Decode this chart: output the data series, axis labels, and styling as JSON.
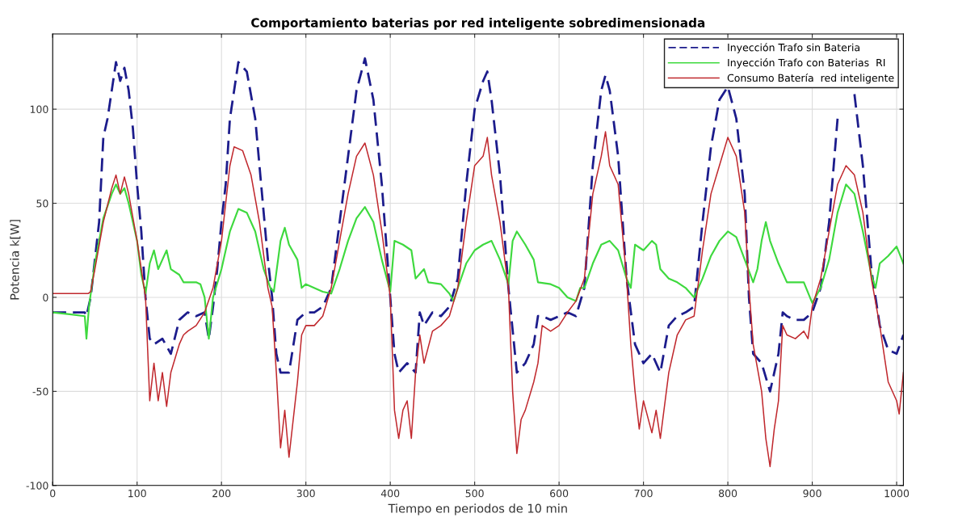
{
  "chart_data": {
    "type": "line",
    "title": "Comportamiento baterias por red inteligente sobredimensionada",
    "xlabel": "Tiempo en periodos de 10 min",
    "ylabel": "Potencia k[W]",
    "xlim": [
      0,
      1008
    ],
    "xticks": [
      0,
      100,
      200,
      300,
      400,
      500,
      600,
      700,
      800,
      900,
      1000
    ],
    "ylim": [
      -100,
      140
    ],
    "yticks": [
      -100,
      -50,
      0,
      50,
      100
    ],
    "grid": true,
    "legend": "top right",
    "series": [
      {
        "name": "Inyección Trafo sin Bateria",
        "color": "#1c1c8c",
        "line_style": "dashed",
        "x": [
          0,
          20,
          38,
          40,
          45,
          50,
          55,
          60,
          65,
          70,
          75,
          80,
          85,
          90,
          95,
          100,
          105,
          110,
          115,
          120,
          130,
          140,
          150,
          160,
          170,
          180,
          185,
          190,
          195,
          200,
          205,
          210,
          220,
          230,
          240,
          250,
          255,
          260,
          265,
          270,
          280,
          290,
          300,
          310,
          320,
          330,
          340,
          350,
          360,
          370,
          380,
          390,
          400,
          405,
          410,
          420,
          430,
          435,
          440,
          450,
          460,
          470,
          480,
          490,
          500,
          510,
          515,
          520,
          530,
          540,
          550,
          560,
          570,
          575,
          580,
          590,
          600,
          610,
          620,
          630,
          640,
          650,
          655,
          660,
          670,
          680,
          690,
          700,
          710,
          720,
          730,
          740,
          750,
          760,
          770,
          780,
          790,
          800,
          810,
          820,
          825,
          830,
          840,
          850,
          860,
          865,
          870,
          880,
          890,
          900,
          910,
          920,
          930,
          940,
          950,
          960,
          970,
          980,
          990,
          1000,
          1008
        ],
        "values": [
          -8,
          -8,
          -8,
          -10,
          0,
          20,
          40,
          85,
          95,
          110,
          125,
          115,
          122,
          110,
          90,
          60,
          35,
          0,
          -22,
          -25,
          -22,
          -30,
          -12,
          -8,
          -10,
          -8,
          -22,
          -5,
          15,
          40,
          60,
          95,
          125,
          120,
          95,
          45,
          20,
          0,
          -30,
          -40,
          -40,
          -12,
          -8,
          -8,
          -5,
          5,
          40,
          75,
          110,
          127,
          105,
          60,
          0,
          -30,
          -40,
          -35,
          -40,
          -8,
          -15,
          -8,
          -10,
          -5,
          10,
          60,
          100,
          115,
          120,
          105,
          65,
          5,
          -40,
          -35,
          -25,
          -10,
          -10,
          -12,
          -10,
          -8,
          -10,
          5,
          70,
          110,
          118,
          110,
          75,
          10,
          -25,
          -35,
          -30,
          -40,
          -15,
          -10,
          -8,
          -5,
          40,
          80,
          105,
          112,
          95,
          55,
          0,
          -30,
          -35,
          -50,
          -30,
          -8,
          -10,
          -12,
          -12,
          -8,
          5,
          40,
          95,
          null,
          108,
          70,
          15,
          -15,
          -28,
          -30,
          -20
        ]
      },
      {
        "name": "Inyección Trafo con Baterias  RI",
        "color": "#3ed93e",
        "line_style": "solid",
        "x": [
          0,
          20,
          38,
          40,
          43,
          50,
          60,
          70,
          75,
          80,
          85,
          90,
          100,
          105,
          110,
          115,
          120,
          125,
          130,
          135,
          140,
          150,
          155,
          160,
          170,
          175,
          180,
          185,
          190,
          200,
          210,
          220,
          230,
          240,
          250,
          258,
          262,
          270,
          275,
          280,
          290,
          295,
          300,
          320,
          330,
          340,
          350,
          360,
          370,
          380,
          390,
          400,
          405,
          415,
          425,
          430,
          440,
          445,
          460,
          470,
          475,
          480,
          490,
          500,
          510,
          520,
          530,
          540,
          545,
          550,
          560,
          570,
          575,
          590,
          600,
          610,
          620,
          625,
          630,
          640,
          650,
          660,
          670,
          680,
          685,
          690,
          700,
          710,
          715,
          720,
          730,
          740,
          750,
          760,
          770,
          780,
          790,
          800,
          810,
          820,
          830,
          835,
          840,
          845,
          850,
          860,
          870,
          880,
          890,
          900,
          910,
          920,
          930,
          940,
          950,
          960,
          970,
          975,
          980,
          990,
          1000,
          1008
        ],
        "values": [
          -8,
          -9,
          -10,
          -22,
          -5,
          18,
          42,
          55,
          60,
          55,
          58,
          50,
          30,
          12,
          2,
          18,
          25,
          15,
          20,
          25,
          15,
          12,
          8,
          8,
          8,
          7,
          0,
          -22,
          0,
          15,
          35,
          47,
          45,
          35,
          15,
          5,
          3,
          30,
          37,
          28,
          20,
          5,
          7,
          3,
          2,
          15,
          30,
          42,
          48,
          40,
          20,
          3,
          30,
          28,
          25,
          10,
          15,
          8,
          7,
          2,
          -2,
          5,
          18,
          25,
          28,
          30,
          20,
          7,
          30,
          35,
          28,
          20,
          8,
          7,
          5,
          0,
          -2,
          5,
          5,
          18,
          28,
          30,
          25,
          10,
          5,
          28,
          25,
          30,
          28,
          15,
          10,
          8,
          5,
          0,
          10,
          22,
          30,
          35,
          32,
          20,
          8,
          15,
          30,
          40,
          30,
          18,
          8,
          8,
          8,
          -3,
          5,
          20,
          45,
          60,
          55,
          35,
          12,
          5,
          18,
          22,
          27,
          18
        ]
      },
      {
        "name": "Consumo Batería  red inteligente",
        "color": "#c0282d",
        "line_style": "solid",
        "x": [
          0,
          42,
          45,
          50,
          60,
          70,
          75,
          80,
          85,
          90,
          100,
          110,
          115,
          120,
          125,
          130,
          135,
          140,
          150,
          155,
          160,
          170,
          180,
          190,
          200,
          210,
          215,
          225,
          235,
          245,
          255,
          260,
          265,
          270,
          275,
          280,
          285,
          290,
          295,
          300,
          310,
          320,
          330,
          340,
          350,
          360,
          370,
          380,
          390,
          400,
          405,
          410,
          415,
          420,
          425,
          430,
          435,
          440,
          450,
          460,
          470,
          480,
          490,
          500,
          510,
          515,
          520,
          530,
          540,
          545,
          550,
          555,
          560,
          570,
          575,
          580,
          590,
          600,
          610,
          620,
          630,
          640,
          650,
          655,
          660,
          670,
          680,
          685,
          690,
          695,
          700,
          710,
          715,
          720,
          730,
          740,
          750,
          760,
          770,
          780,
          790,
          800,
          810,
          820,
          825,
          830,
          840,
          845,
          850,
          855,
          860,
          865,
          870,
          880,
          890,
          895,
          900,
          910,
          920,
          930,
          940,
          950,
          960,
          970,
          980,
          990,
          1000,
          1003,
          1008
        ],
        "values": [
          2,
          2,
          3,
          15,
          40,
          58,
          65,
          55,
          64,
          55,
          30,
          0,
          -55,
          -35,
          -55,
          -40,
          -58,
          -40,
          -25,
          -20,
          -18,
          -15,
          -8,
          5,
          30,
          70,
          80,
          78,
          65,
          40,
          5,
          -5,
          -40,
          -80,
          -60,
          -85,
          -65,
          -45,
          -20,
          -15,
          -15,
          -10,
          5,
          30,
          55,
          75,
          82,
          65,
          35,
          0,
          -60,
          -75,
          -60,
          -55,
          -75,
          -40,
          -20,
          -35,
          -18,
          -15,
          -10,
          5,
          40,
          70,
          75,
          85,
          65,
          40,
          5,
          -50,
          -83,
          -65,
          -60,
          -45,
          -35,
          -15,
          -18,
          -15,
          -8,
          -2,
          10,
          55,
          75,
          88,
          70,
          60,
          10,
          -25,
          -50,
          -70,
          -55,
          -72,
          -60,
          -75,
          -40,
          -20,
          -12,
          -10,
          25,
          55,
          70,
          85,
          75,
          45,
          5,
          -25,
          -50,
          -75,
          -90,
          -70,
          -55,
          -15,
          -20,
          -22,
          -18,
          -22,
          -5,
          10,
          35,
          60,
          70,
          65,
          45,
          10,
          -15,
          -45,
          -55,
          -62,
          -40
        ]
      }
    ]
  }
}
